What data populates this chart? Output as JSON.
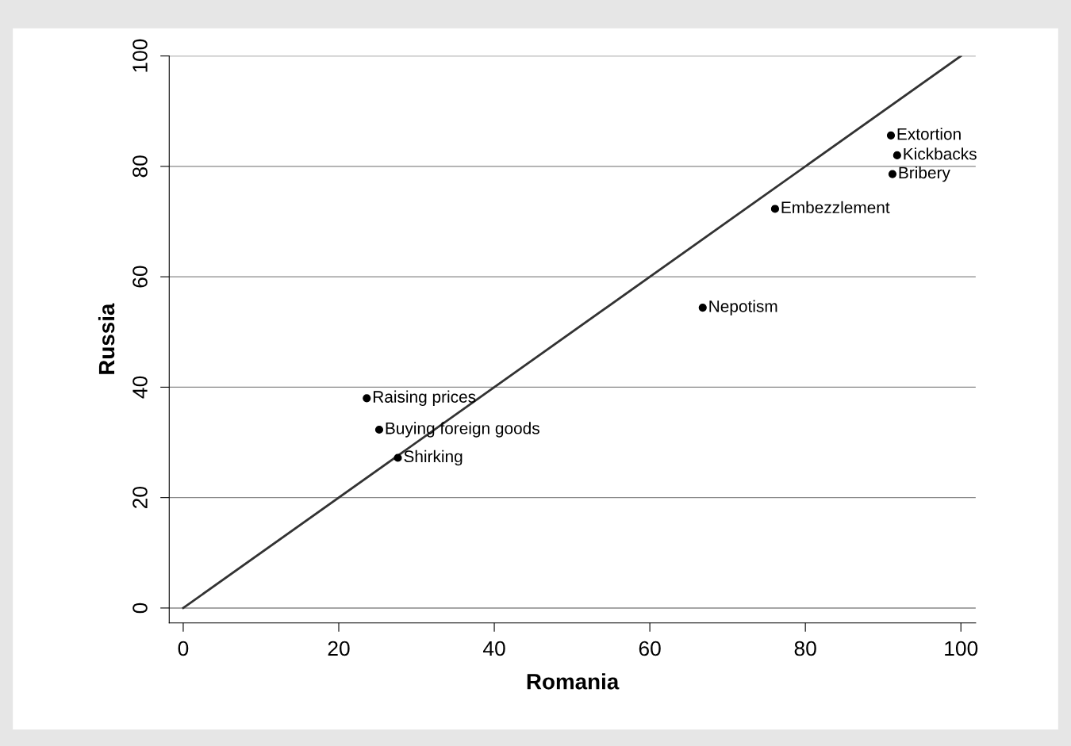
{
  "chart_data": {
    "type": "scatter",
    "xlabel": "Romania",
    "ylabel": "Russia",
    "xlim": [
      -1.8,
      101.9
    ],
    "ylim": [
      -2.7,
      100
    ],
    "xticks": [
      0,
      20,
      40,
      60,
      80,
      100
    ],
    "yticks": [
      0,
      20,
      40,
      60,
      80,
      100
    ],
    "grid": "y",
    "series": [
      {
        "marker": "circle",
        "color": "#000000",
        "x": [
          91.0,
          91.8,
          91.2,
          76.1,
          66.8,
          23.6,
          25.2,
          27.6
        ],
        "values": [
          85.6,
          82.0,
          78.6,
          72.3,
          54.4,
          38.0,
          32.3,
          27.2
        ]
      },
      {
        "type": "line",
        "marker": "none",
        "color": "#333333",
        "x": [
          0,
          100
        ],
        "values": [
          0,
          100
        ]
      }
    ],
    "annotations": [
      {
        "text": "Extortion",
        "x": 91.0,
        "y": 85.6
      },
      {
        "text": "Kickbacks",
        "x": 91.8,
        "y": 82.0
      },
      {
        "text": "Bribery",
        "x": 91.2,
        "y": 78.6
      },
      {
        "text": "Embezzlement",
        "x": 76.1,
        "y": 72.3
      },
      {
        "text": "Nepotism",
        "x": 66.8,
        "y": 54.4
      },
      {
        "text": "Raising prices",
        "x": 23.6,
        "y": 38.0
      },
      {
        "text": "Buying foreign goods",
        "x": 25.2,
        "y": 32.3
      },
      {
        "text": "Shirking",
        "x": 27.6,
        "y": 27.2
      }
    ]
  }
}
